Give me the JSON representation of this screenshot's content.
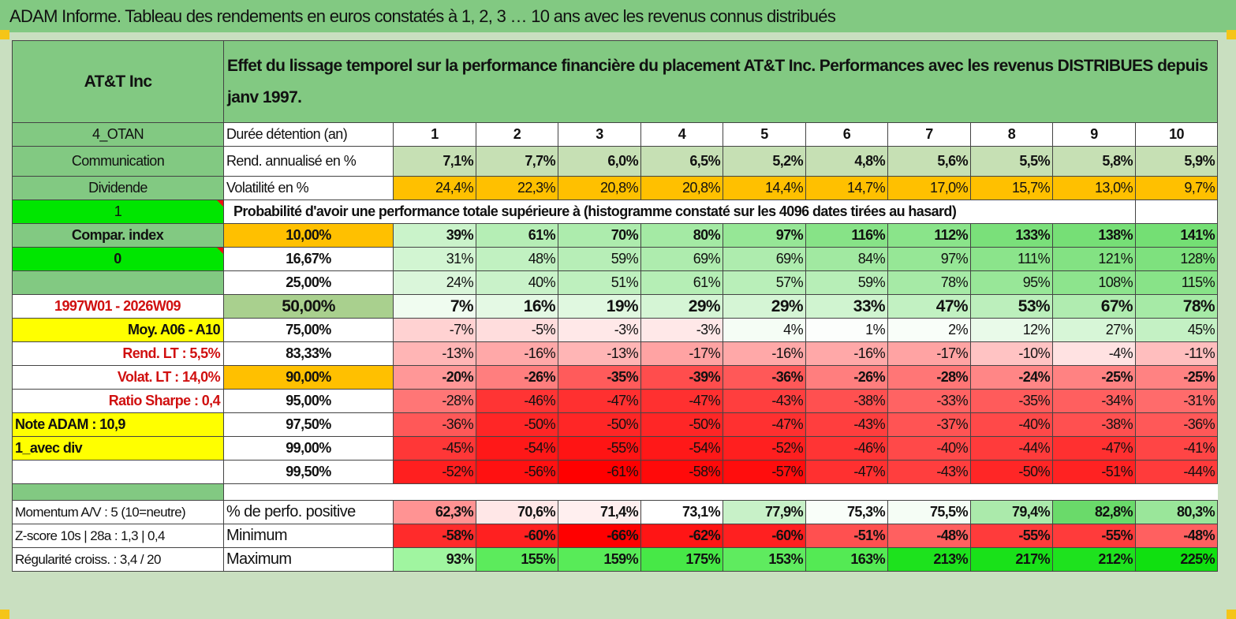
{
  "title": "ADAM Informe. Tableau des rendements en euros constatés à 1, 2, 3 … 10 ans avec les revenus connus distribués",
  "asset_name": "AT&T Inc",
  "description": "Effet du lissage temporel sur la performance financière du placement AT&T Inc. Performances avec les revenus DISTRIBUES depuis janv 1997.",
  "left": {
    "code": "4_OTAN",
    "sector": "Communication",
    "type": "Dividende",
    "flag1": "1",
    "compar_label": "Compar. index",
    "flag2": "0",
    "period": "1997W01 - 2026W09",
    "moy": "Moy. A06 - A10",
    "rend_lt": "Rend. LT :   5,5%",
    "volat_lt": "Volat. LT :   14,0%",
    "sharpe": "Ratio Sharpe :    0,4",
    "note": "Note ADAM : 10,9",
    "mode": "1_avec div"
  },
  "durations_label": "Durée détention (an)",
  "durations": [
    "1",
    "2",
    "3",
    "4",
    "5",
    "6",
    "7",
    "8",
    "9",
    "10"
  ],
  "rend_label": "Rend. annualisé en %",
  "rend": [
    "7,1%",
    "7,7%",
    "6,0%",
    "6,5%",
    "5,2%",
    "4,8%",
    "5,6%",
    "5,5%",
    "5,8%",
    "5,9%"
  ],
  "vol_label": "Volatilité en %",
  "vol": [
    "24,4%",
    "22,3%",
    "20,8%",
    "20,8%",
    "14,4%",
    "14,7%",
    "17,0%",
    "15,7%",
    "13,0%",
    "9,7%"
  ],
  "proba_label": "Probabilité d'avoir une performance totale supérieure à (histogramme constaté sur les 4096 dates tirées au hasard)",
  "proba_rows": [
    {
      "p": "10,00%",
      "vals": [
        "39%",
        "61%",
        "70%",
        "80%",
        "97%",
        "116%",
        "112%",
        "133%",
        "138%",
        "141%"
      ]
    },
    {
      "p": "16,67%",
      "vals": [
        "31%",
        "48%",
        "59%",
        "69%",
        "69%",
        "84%",
        "97%",
        "111%",
        "121%",
        "128%"
      ]
    },
    {
      "p": "25,00%",
      "vals": [
        "24%",
        "40%",
        "51%",
        "61%",
        "57%",
        "59%",
        "78%",
        "95%",
        "108%",
        "115%"
      ]
    },
    {
      "p": "50,00%",
      "vals": [
        "7%",
        "16%",
        "19%",
        "29%",
        "29%",
        "33%",
        "47%",
        "53%",
        "67%",
        "78%"
      ]
    },
    {
      "p": "75,00%",
      "vals": [
        "-7%",
        "-5%",
        "-3%",
        "-3%",
        "4%",
        "1%",
        "2%",
        "12%",
        "27%",
        "45%"
      ]
    },
    {
      "p": "83,33%",
      "vals": [
        "-13%",
        "-16%",
        "-13%",
        "-17%",
        "-16%",
        "-16%",
        "-17%",
        "-10%",
        "-4%",
        "-11%"
      ]
    },
    {
      "p": "90,00%",
      "vals": [
        "-20%",
        "-26%",
        "-35%",
        "-39%",
        "-36%",
        "-26%",
        "-28%",
        "-24%",
        "-25%",
        "-25%"
      ]
    },
    {
      "p": "95,00%",
      "vals": [
        "-28%",
        "-46%",
        "-47%",
        "-47%",
        "-43%",
        "-38%",
        "-33%",
        "-35%",
        "-34%",
        "-31%"
      ]
    },
    {
      "p": "97,50%",
      "vals": [
        "-36%",
        "-50%",
        "-50%",
        "-50%",
        "-47%",
        "-43%",
        "-37%",
        "-40%",
        "-38%",
        "-36%"
      ]
    },
    {
      "p": "99,00%",
      "vals": [
        "-45%",
        "-54%",
        "-55%",
        "-54%",
        "-52%",
        "-46%",
        "-40%",
        "-44%",
        "-47%",
        "-41%"
      ]
    },
    {
      "p": "99,50%",
      "vals": [
        "-52%",
        "-56%",
        "-61%",
        "-58%",
        "-57%",
        "-47%",
        "-43%",
        "-50%",
        "-51%",
        "-44%"
      ]
    }
  ],
  "bottom": [
    {
      "left": "Momentum A/V : 5 (10=neutre)",
      "label": "% de perfo. positive",
      "vals": [
        "62,3%",
        "70,6%",
        "71,4%",
        "73,1%",
        "77,9%",
        "75,3%",
        "75,5%",
        "79,4%",
        "82,8%",
        "80,3%"
      ]
    },
    {
      "left": "Z-score 10s | 28a : 1,3 | 0,4",
      "label": "Minimum",
      "vals": [
        "-58%",
        "-60%",
        "-66%",
        "-62%",
        "-60%",
        "-51%",
        "-48%",
        "-55%",
        "-55%",
        "-48%"
      ]
    },
    {
      "left": "Régularité croiss. : 3,4 / 20",
      "label": "Maximum",
      "vals": [
        "93%",
        "155%",
        "159%",
        "175%",
        "153%",
        "163%",
        "213%",
        "217%",
        "212%",
        "225%"
      ]
    }
  ],
  "colors": {
    "header_green": "#82c982",
    "rend_green": "#c6e0b4",
    "vol_orange": "#ffc000",
    "bright_green": "#00e600",
    "yellow": "#ffff00",
    "median_green": "#a9d08e",
    "red_text": "#d01010"
  }
}
